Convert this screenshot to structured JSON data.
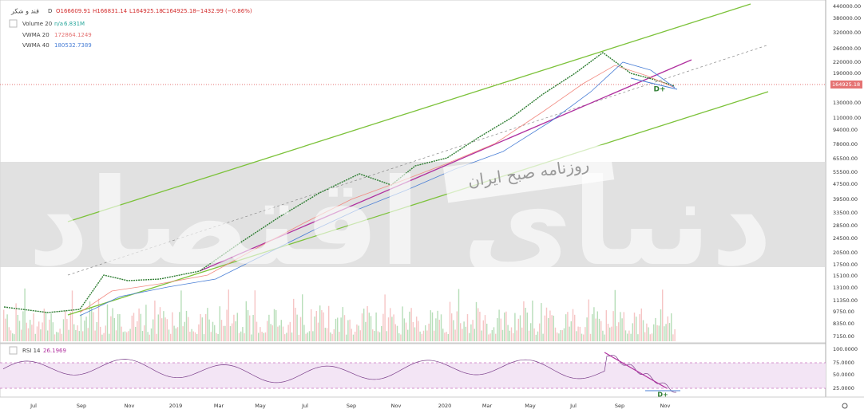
{
  "header": {
    "symbol": "قند و شکر",
    "interval": "D",
    "open": "O166609.91",
    "high": "H166831.14",
    "low": "L164925.18",
    "close": "C164925.18",
    "change": "−1432.99 (−0.86%)"
  },
  "legend": [
    {
      "name": "Volume 20",
      "values": [
        "n/a",
        "6.831M"
      ]
    },
    {
      "name": "VWMA 20",
      "values": [
        "172864.1249"
      ]
    },
    {
      "name": "VWMA 40",
      "values": [
        "180532.7389"
      ]
    }
  ],
  "price_axis": {
    "labels": [
      "440000.00",
      "380000.00",
      "320000.00",
      "260000.00",
      "220000.00",
      "190000.00",
      "130000.00",
      "110000.00",
      "94000.00",
      "78000.00",
      "65500.00",
      "55500.00",
      "47500.00",
      "39500.00",
      "33500.00",
      "28500.00",
      "24500.00",
      "20500.00",
      "17500.00",
      "15100.00",
      "13100.00",
      "11350.00",
      "9750.00",
      "8350.00",
      "7150.00"
    ],
    "current_price": "164925.18"
  },
  "rsi": {
    "name": "RSI 14",
    "value": "26.1969",
    "labels": [
      "100.0000",
      "75.0000",
      "50.0000",
      "25.0000"
    ]
  },
  "time_axis": [
    "Jul",
    "Sep",
    "Nov",
    "2019",
    "Mar",
    "May",
    "Jul",
    "Sep",
    "Nov",
    "2020",
    "Mar",
    "May",
    "Jul",
    "Sep",
    "Nov"
  ],
  "watermark": {
    "title": "دنیای اقتصاد",
    "subtitle": "روزنامه صبح ایران"
  },
  "annotations": [
    "D+",
    "D+"
  ]
}
